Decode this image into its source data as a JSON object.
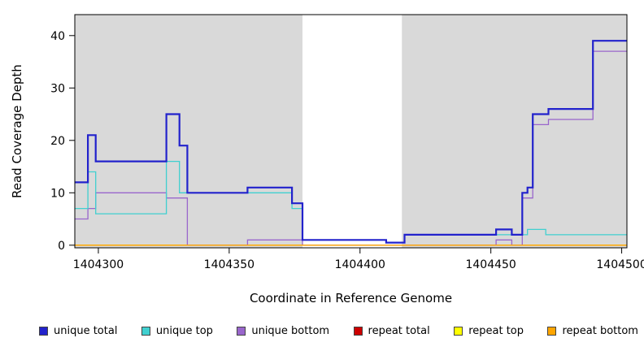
{
  "figure": {
    "background": "#ffffff"
  },
  "chart_data": {
    "type": "line",
    "line_style": "step",
    "title": "",
    "xlabel": "Coordinate in Reference Genome",
    "ylabel": "Read Coverage Depth",
    "xlim": [
      1404291,
      1404502
    ],
    "ylim": [
      -0.5,
      44
    ],
    "x_ticks": [
      1404300,
      1404350,
      1404400,
      1404450,
      1404500
    ],
    "y_ticks": [
      0,
      10,
      20,
      30,
      40
    ],
    "grid": false,
    "plot_background": "#ffffff",
    "shaded_regions": [
      {
        "x0": 1404291,
        "x1": 1404378,
        "color": "#d9d9d9"
      },
      {
        "x0": 1404416,
        "x1": 1404502,
        "color": "#d9d9d9"
      }
    ],
    "series": [
      {
        "name": "unique total",
        "color": "#2222cc",
        "line_width": 2.2,
        "step_points": [
          [
            1404291,
            12
          ],
          [
            1404296,
            21
          ],
          [
            1404299,
            16
          ],
          [
            1404326,
            25
          ],
          [
            1404331,
            19
          ],
          [
            1404334,
            10
          ],
          [
            1404357,
            11
          ],
          [
            1404374,
            8
          ],
          [
            1404378,
            1
          ],
          [
            1404410,
            0.5
          ],
          [
            1404417,
            2
          ],
          [
            1404452,
            3
          ],
          [
            1404458,
            2
          ],
          [
            1404462,
            10
          ],
          [
            1404464,
            11
          ],
          [
            1404466,
            25
          ],
          [
            1404472,
            26
          ],
          [
            1404489,
            39
          ],
          [
            1404502,
            39
          ]
        ]
      },
      {
        "name": "unique top",
        "color": "#40d0d0",
        "line_width": 1.3,
        "step_points": [
          [
            1404291,
            7
          ],
          [
            1404296,
            14
          ],
          [
            1404299,
            6
          ],
          [
            1404326,
            16
          ],
          [
            1404331,
            10
          ],
          [
            1404374,
            7
          ],
          [
            1404378,
            1
          ],
          [
            1404410,
            0.5
          ],
          [
            1404417,
            2
          ],
          [
            1404464,
            3
          ],
          [
            1404471,
            2
          ],
          [
            1404502,
            2
          ]
        ]
      },
      {
        "name": "unique bottom",
        "color": "#9966cc",
        "line_width": 1.3,
        "step_points": [
          [
            1404291,
            5
          ],
          [
            1404296,
            7
          ],
          [
            1404299,
            10
          ],
          [
            1404326,
            9
          ],
          [
            1404334,
            0
          ],
          [
            1404357,
            1
          ],
          [
            1404378,
            0
          ],
          [
            1404452,
            1
          ],
          [
            1404458,
            0
          ],
          [
            1404462,
            9
          ],
          [
            1404466,
            23
          ],
          [
            1404472,
            24
          ],
          [
            1404489,
            37
          ],
          [
            1404502,
            37
          ]
        ]
      },
      {
        "name": "repeat total",
        "color": "#cd0000",
        "line_width": 1.3,
        "step_points": [
          [
            1404291,
            0
          ],
          [
            1404502,
            0
          ]
        ]
      },
      {
        "name": "repeat top",
        "color": "#ffff00",
        "line_width": 1.3,
        "step_points": [
          [
            1404291,
            0
          ],
          [
            1404502,
            0
          ]
        ]
      },
      {
        "name": "repeat bottom",
        "color": "#ffa500",
        "line_width": 1.3,
        "step_points": [
          [
            1404291,
            0
          ],
          [
            1404502,
            0
          ]
        ]
      }
    ],
    "draw_order": [
      "repeat total",
      "repeat top",
      "unique bottom",
      "unique top",
      "repeat bottom",
      "unique total"
    ],
    "legend": {
      "position": "bottom",
      "items": [
        {
          "label": "unique total",
          "color": "#2222cc"
        },
        {
          "label": "unique top",
          "color": "#40d0d0"
        },
        {
          "label": "unique bottom",
          "color": "#9966cc"
        },
        {
          "label": "repeat total",
          "color": "#cd0000"
        },
        {
          "label": "repeat top",
          "color": "#ffff00"
        },
        {
          "label": "repeat bottom",
          "color": "#ffa500"
        }
      ]
    }
  }
}
